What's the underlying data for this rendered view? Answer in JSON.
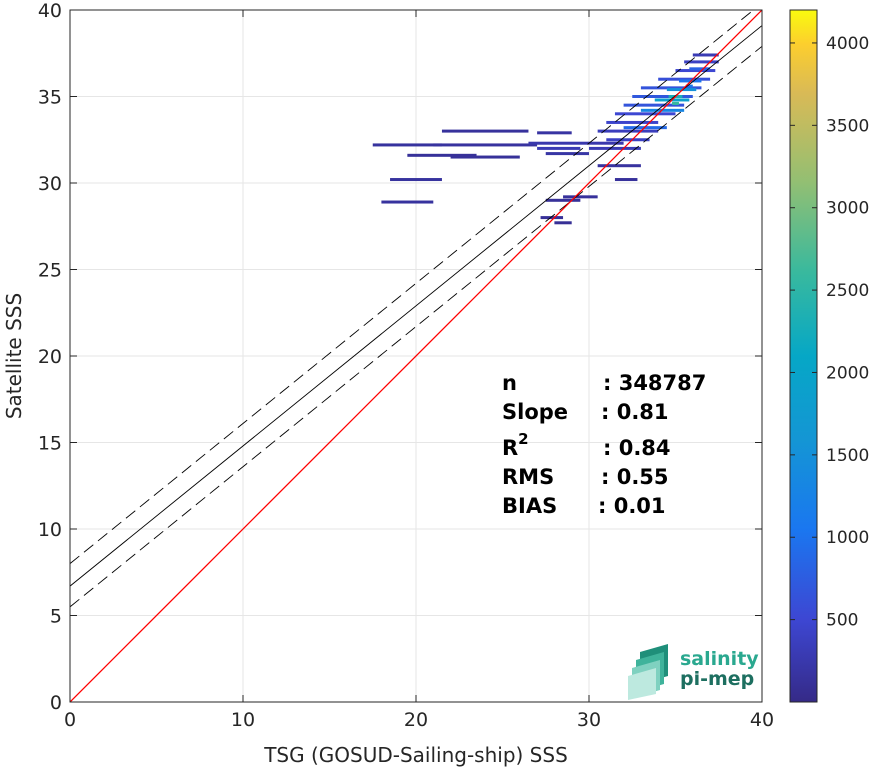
{
  "chart_data": {
    "type": "scatter",
    "subtype": "2d-density-histogram",
    "xlabel": "TSG (GOSUD-Sailing-ship) SSS",
    "ylabel": "Satellite SSS",
    "xlim": [
      0,
      40
    ],
    "ylim": [
      0,
      40
    ],
    "xticks": [
      "0",
      "10",
      "20",
      "30",
      "40"
    ],
    "yticks": [
      "0",
      "5",
      "10",
      "15",
      "20",
      "25",
      "30",
      "35",
      "40"
    ],
    "grid": true,
    "colorbar": {
      "range": [
        0,
        4200
      ],
      "ticks": [
        "500",
        "1000",
        "1500",
        "2000",
        "2500",
        "3000",
        "3500",
        "4000"
      ],
      "tick_values": [
        500,
        1000,
        1500,
        2000,
        2500,
        3000,
        3500,
        4000
      ],
      "colormap": "parula"
    },
    "lines": {
      "identity": {
        "x": [
          0,
          40
        ],
        "y": [
          0,
          40
        ],
        "color": "#ff0000"
      },
      "regression": {
        "x": [
          0,
          40
        ],
        "y": [
          6.7,
          39.1
        ],
        "color": "#000000"
      },
      "upper_bound": {
        "x": [
          0,
          40
        ],
        "y": [
          8.0,
          40.4
        ],
        "color": "#000000"
      },
      "lower_bound": {
        "x": [
          0,
          40
        ],
        "y": [
          5.5,
          37.9
        ],
        "color": "#000000"
      }
    },
    "stats": [
      {
        "label": "n",
        "value": ": 348787"
      },
      {
        "label": "Slope",
        "value": ": 0.81"
      },
      {
        "label": "R",
        "sup": "2",
        "value": ": 0.84"
      },
      {
        "label": "RMS",
        "value": ": 0.55"
      },
      {
        "label": "BIAS",
        "value": ": 0.01"
      }
    ],
    "density_segments": [
      {
        "x1": 17.5,
        "x2": 21.5,
        "y": 32.2,
        "v": 150
      },
      {
        "x1": 21.0,
        "x2": 27.0,
        "y": 32.2,
        "v": 160
      },
      {
        "x1": 26.5,
        "x2": 32.0,
        "y": 32.3,
        "v": 250
      },
      {
        "x1": 27.0,
        "x2": 29.5,
        "y": 32.0,
        "v": 300
      },
      {
        "x1": 21.5,
        "x2": 26.5,
        "y": 33.0,
        "v": 140
      },
      {
        "x1": 27.0,
        "x2": 29.0,
        "y": 32.9,
        "v": 180
      },
      {
        "x1": 19.5,
        "x2": 23.5,
        "y": 31.6,
        "v": 120
      },
      {
        "x1": 22.0,
        "x2": 26.0,
        "y": 31.5,
        "v": 120
      },
      {
        "x1": 27.5,
        "x2": 30.0,
        "y": 31.7,
        "v": 200
      },
      {
        "x1": 18.5,
        "x2": 21.5,
        "y": 30.2,
        "v": 150
      },
      {
        "x1": 18.0,
        "x2": 21.0,
        "y": 28.9,
        "v": 150
      },
      {
        "x1": 27.5,
        "x2": 29.5,
        "y": 29.0,
        "v": 120
      },
      {
        "x1": 28.5,
        "x2": 30.5,
        "y": 29.2,
        "v": 130
      },
      {
        "x1": 27.2,
        "x2": 28.5,
        "y": 28.0,
        "v": 110
      },
      {
        "x1": 28.0,
        "x2": 29.0,
        "y": 27.7,
        "v": 100
      },
      {
        "x1": 31.5,
        "x2": 32.8,
        "y": 30.2,
        "v": 130
      },
      {
        "x1": 30.5,
        "x2": 33.0,
        "y": 31.0,
        "v": 160
      },
      {
        "x1": 30.0,
        "x2": 33.0,
        "y": 32.0,
        "v": 300
      },
      {
        "x1": 31.0,
        "x2": 33.5,
        "y": 32.5,
        "v": 400
      },
      {
        "x1": 30.5,
        "x2": 34.0,
        "y": 33.0,
        "v": 350
      },
      {
        "x1": 31.0,
        "x2": 34.0,
        "y": 33.5,
        "v": 450
      },
      {
        "x1": 31.5,
        "x2": 35.0,
        "y": 34.0,
        "v": 500
      },
      {
        "x1": 32.0,
        "x2": 35.5,
        "y": 34.5,
        "v": 650
      },
      {
        "x1": 32.5,
        "x2": 36.0,
        "y": 35.0,
        "v": 700
      },
      {
        "x1": 33.0,
        "x2": 36.5,
        "y": 35.5,
        "v": 650
      },
      {
        "x1": 34.0,
        "x2": 37.0,
        "y": 36.0,
        "v": 600
      },
      {
        "x1": 35.0,
        "x2": 37.3,
        "y": 36.5,
        "v": 500
      },
      {
        "x1": 35.5,
        "x2": 37.5,
        "y": 37.0,
        "v": 400
      },
      {
        "x1": 36.0,
        "x2": 37.5,
        "y": 37.4,
        "v": 300
      },
      {
        "x1": 32.0,
        "x2": 34.5,
        "y": 33.2,
        "v": 900
      },
      {
        "x1": 33.0,
        "x2": 35.5,
        "y": 34.2,
        "v": 1300
      },
      {
        "x1": 33.8,
        "x2": 35.8,
        "y": 34.8,
        "v": 1900
      },
      {
        "x1": 34.5,
        "x2": 36.2,
        "y": 35.4,
        "v": 1500
      },
      {
        "x1": 34.6,
        "x2": 35.4,
        "y": 35.0,
        "v": 2300
      },
      {
        "x1": 35.2,
        "x2": 36.5,
        "y": 35.9,
        "v": 1000
      },
      {
        "x1": 35.8,
        "x2": 37.0,
        "y": 36.6,
        "v": 800
      },
      {
        "x1": 34.8,
        "x2": 35.2,
        "y": 34.6,
        "v": 2600
      },
      {
        "x1": 35.6,
        "x2": 36.0,
        "y": 35.6,
        "v": 1100
      }
    ]
  },
  "logo": {
    "line1": "salinity",
    "line2": "pi-mep"
  }
}
